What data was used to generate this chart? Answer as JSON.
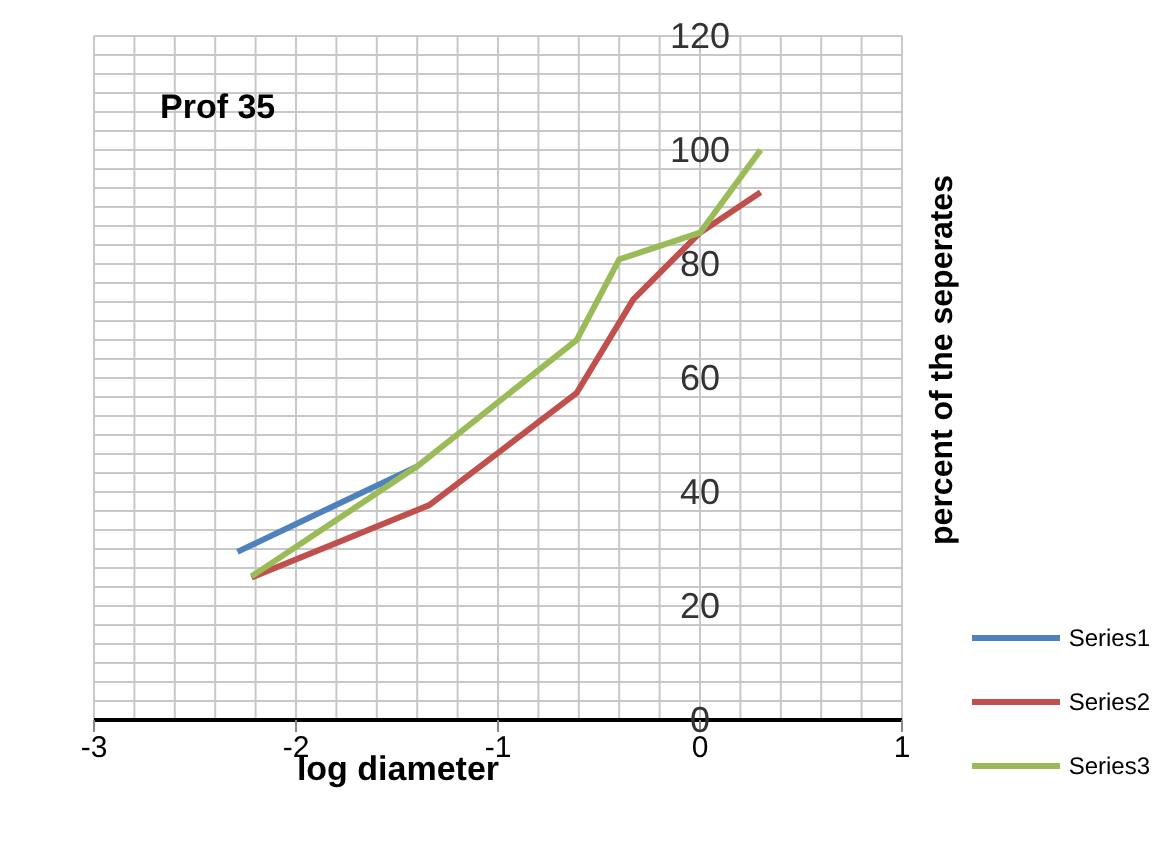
{
  "chart_data": {
    "type": "line",
    "title": "Prof 35",
    "xlabel": "log diameter",
    "ylabel": "percent of the seperates",
    "xlim": [
      -3,
      1
    ],
    "xticks": [
      -3,
      -2,
      -1,
      0,
      1
    ],
    "ylim": [
      0,
      120
    ],
    "yticks": [
      0,
      20,
      40,
      60,
      80,
      100,
      120
    ],
    "grid": true,
    "legend": "bottom right",
    "marker": "none",
    "line_style": "solid",
    "series": [
      {
        "name": "Series1",
        "color": "#4f81bd",
        "x": [
          -2.29,
          -1.4
        ],
        "values": [
          29.5,
          44.5
        ]
      },
      {
        "name": "Series2",
        "color": "#c0504d",
        "x": [
          -2.22,
          -1.34,
          -0.61,
          -0.33,
          0,
          0.3
        ],
        "values": [
          25,
          37.7,
          57.4,
          73.8,
          85.5,
          92.6
        ]
      },
      {
        "name": "Series3",
        "color": "#9bbb59",
        "x": [
          -2.22,
          -1.4,
          -0.61,
          -0.4,
          0,
          0.3
        ],
        "values": [
          25.2,
          44.5,
          66.7,
          80.8,
          85.5,
          100
        ]
      }
    ]
  }
}
